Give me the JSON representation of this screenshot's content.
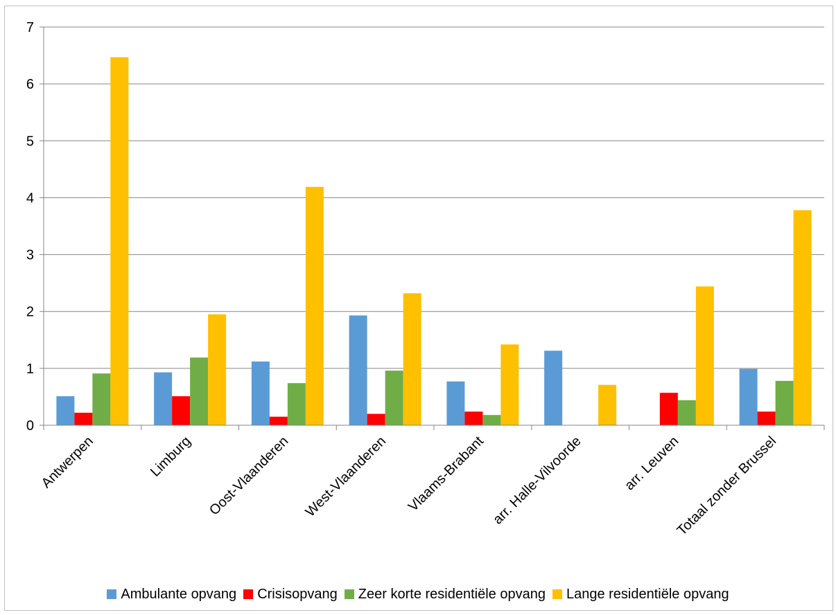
{
  "chart_data": {
    "type": "bar",
    "title": "",
    "xlabel": "",
    "ylabel": "",
    "ylim": [
      0,
      7
    ],
    "yticks": [
      0,
      1,
      2,
      3,
      4,
      5,
      6,
      7
    ],
    "grid": true,
    "legend_position": "bottom",
    "categories": [
      "Antwerpen",
      "Limburg",
      "Oost-Vlaanderen",
      "West-Vlaanderen",
      "Vlaams-Brabant",
      "arr. Halle-Vilvoorde",
      "arr. Leuven",
      "Totaal zonder Brussel"
    ],
    "series": [
      {
        "name": "Ambulante opvang",
        "color": "#5b9bd5",
        "values": [
          0.51,
          0.93,
          1.12,
          1.93,
          0.77,
          1.31,
          0,
          0.99
        ]
      },
      {
        "name": "Crisisopvang",
        "color": "#ff0000",
        "values": [
          0.22,
          0.51,
          0.15,
          0.2,
          0.24,
          0,
          0.57,
          0.24
        ]
      },
      {
        "name": "Zeer korte residentiële opvang",
        "color": "#70ad47",
        "values": [
          0.91,
          1.19,
          0.74,
          0.96,
          0.18,
          0,
          0.44,
          0.78
        ]
      },
      {
        "name": "Lange residentiële opvang",
        "color": "#ffc000",
        "values": [
          6.47,
          1.95,
          4.19,
          2.32,
          1.42,
          0.71,
          2.44,
          3.78
        ]
      }
    ]
  }
}
